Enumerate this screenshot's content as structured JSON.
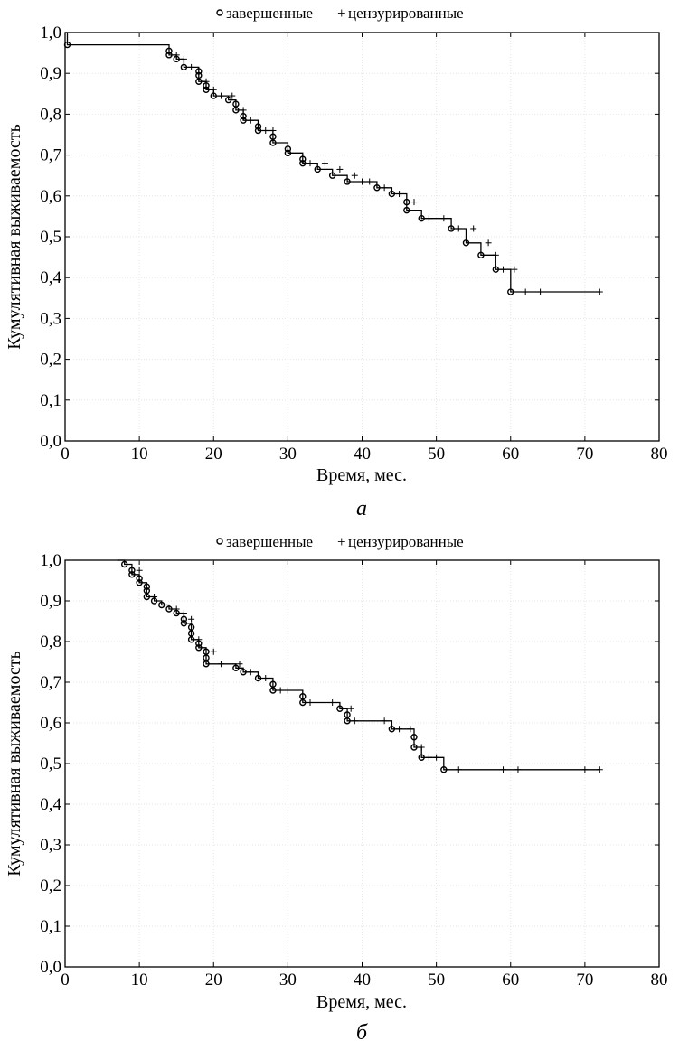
{
  "chart_data": [
    {
      "type": "line",
      "caption": "а",
      "legend": [
        "завершенные",
        "цензурированные"
      ],
      "xlabel": "Время, мес.",
      "ylabel": "Кумулятивная выживаемость",
      "xlim": [
        0,
        80
      ],
      "ylim": [
        0,
        1
      ],
      "x_ticks": [
        "0",
        "10",
        "20",
        "30",
        "40",
        "50",
        "60",
        "70",
        "80"
      ],
      "y_ticks": [
        "0,0",
        "0,1",
        "0,2",
        "0,3",
        "0,4",
        "0,5",
        "0,6",
        "0,7",
        "0,8",
        "0,9",
        "1,0"
      ],
      "series": [
        {
          "name": "survival",
          "start": [
            0,
            1.0
          ],
          "steps": [
            [
              0.3,
              0.97
            ],
            [
              14,
              0.955
            ],
            [
              14,
              0.945
            ],
            [
              15,
              0.935
            ],
            [
              16,
              0.915
            ],
            [
              18,
              0.905
            ],
            [
              18,
              0.895
            ],
            [
              18,
              0.88
            ],
            [
              19,
              0.87
            ],
            [
              19,
              0.86
            ],
            [
              20,
              0.845
            ],
            [
              22,
              0.835
            ],
            [
              23,
              0.825
            ],
            [
              23,
              0.81
            ],
            [
              24,
              0.795
            ],
            [
              24,
              0.785
            ],
            [
              26,
              0.77
            ],
            [
              26,
              0.76
            ],
            [
              28,
              0.745
            ],
            [
              28,
              0.73
            ],
            [
              30,
              0.715
            ],
            [
              30,
              0.705
            ],
            [
              32,
              0.69
            ],
            [
              32,
              0.68
            ],
            [
              34,
              0.665
            ],
            [
              36,
              0.65
            ],
            [
              38,
              0.635
            ],
            [
              42,
              0.62
            ],
            [
              44,
              0.605
            ],
            [
              46,
              0.585
            ],
            [
              46,
              0.565
            ],
            [
              48,
              0.545
            ],
            [
              52,
              0.52
            ],
            [
              54,
              0.485
            ],
            [
              56,
              0.455
            ],
            [
              58,
              0.42
            ],
            [
              60,
              0.365
            ]
          ],
          "end_x": 72,
          "censored": [
            [
              15,
              0.945
            ],
            [
              16,
              0.935
            ],
            [
              17,
              0.915
            ],
            [
              19,
              0.88
            ],
            [
              20,
              0.86
            ],
            [
              21,
              0.845
            ],
            [
              22.5,
              0.845
            ],
            [
              24,
              0.81
            ],
            [
              25,
              0.785
            ],
            [
              27,
              0.76
            ],
            [
              28,
              0.76
            ],
            [
              33,
              0.68
            ],
            [
              35,
              0.68
            ],
            [
              37,
              0.665
            ],
            [
              39,
              0.65
            ],
            [
              40,
              0.635
            ],
            [
              41,
              0.635
            ],
            [
              43,
              0.62
            ],
            [
              45,
              0.605
            ],
            [
              47,
              0.585
            ],
            [
              49,
              0.545
            ],
            [
              51,
              0.545
            ],
            [
              53,
              0.52
            ],
            [
              55,
              0.52
            ],
            [
              57,
              0.485
            ],
            [
              58,
              0.455
            ],
            [
              59,
              0.42
            ],
            [
              60.5,
              0.42
            ],
            [
              62,
              0.365
            ],
            [
              64,
              0.365
            ],
            [
              72,
              0.365
            ]
          ]
        }
      ]
    },
    {
      "type": "line",
      "caption": "б",
      "legend": [
        "завершенные",
        "цензурированные"
      ],
      "xlabel": "Время, мес.",
      "ylabel": "Кумулятивная выживаемость",
      "xlim": [
        0,
        80
      ],
      "ylim": [
        0,
        1
      ],
      "x_ticks": [
        "0",
        "10",
        "20",
        "30",
        "40",
        "50",
        "60",
        "70",
        "80"
      ],
      "y_ticks": [
        "0,0",
        "0,1",
        "0,2",
        "0,3",
        "0,4",
        "0,5",
        "0,6",
        "0,7",
        "0,8",
        "0,9",
        "1,0"
      ],
      "series": [
        {
          "name": "survival",
          "start": [
            7,
            1.0
          ],
          "steps": [
            [
              8,
              0.99
            ],
            [
              9,
              0.975
            ],
            [
              9,
              0.965
            ],
            [
              10,
              0.955
            ],
            [
              10,
              0.945
            ],
            [
              11,
              0.935
            ],
            [
              11,
              0.925
            ],
            [
              11,
              0.91
            ],
            [
              12,
              0.9
            ],
            [
              13,
              0.89
            ],
            [
              14,
              0.88
            ],
            [
              15,
              0.87
            ],
            [
              16,
              0.855
            ],
            [
              16,
              0.845
            ],
            [
              17,
              0.835
            ],
            [
              17,
              0.82
            ],
            [
              17,
              0.805
            ],
            [
              18,
              0.795
            ],
            [
              18,
              0.785
            ],
            [
              19,
              0.775
            ],
            [
              19,
              0.76
            ],
            [
              19,
              0.745
            ],
            [
              23,
              0.735
            ],
            [
              24,
              0.725
            ],
            [
              26,
              0.71
            ],
            [
              28,
              0.695
            ],
            [
              28,
              0.68
            ],
            [
              32,
              0.665
            ],
            [
              32,
              0.65
            ],
            [
              37,
              0.635
            ],
            [
              38,
              0.62
            ],
            [
              38,
              0.605
            ],
            [
              44,
              0.585
            ],
            [
              47,
              0.565
            ],
            [
              47,
              0.54
            ],
            [
              48,
              0.515
            ],
            [
              51,
              0.485
            ]
          ],
          "end_x": 72,
          "censored": [
            [
              10,
              0.975
            ],
            [
              12,
              0.91
            ],
            [
              15,
              0.88
            ],
            [
              16,
              0.87
            ],
            [
              17,
              0.855
            ],
            [
              18,
              0.805
            ],
            [
              20,
              0.775
            ],
            [
              21,
              0.745
            ],
            [
              23.5,
              0.745
            ],
            [
              25,
              0.725
            ],
            [
              27,
              0.71
            ],
            [
              29,
              0.68
            ],
            [
              30,
              0.68
            ],
            [
              33,
              0.65
            ],
            [
              36,
              0.65
            ],
            [
              38.5,
              0.635
            ],
            [
              39,
              0.605
            ],
            [
              43,
              0.605
            ],
            [
              45,
              0.585
            ],
            [
              46.5,
              0.585
            ],
            [
              48,
              0.54
            ],
            [
              49,
              0.515
            ],
            [
              50,
              0.515
            ],
            [
              53,
              0.485
            ],
            [
              59,
              0.485
            ],
            [
              61,
              0.485
            ],
            [
              70,
              0.485
            ],
            [
              72,
              0.485
            ]
          ]
        }
      ]
    }
  ]
}
